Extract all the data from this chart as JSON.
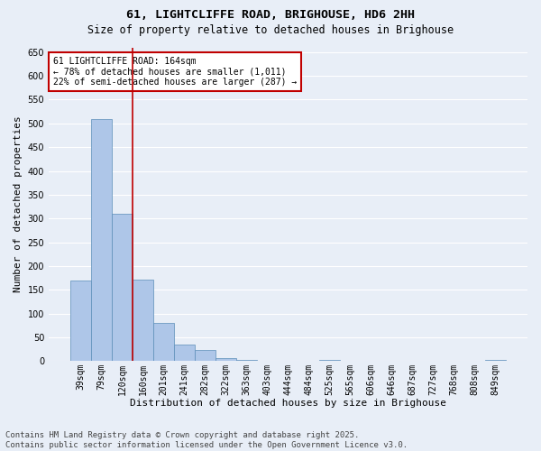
{
  "title": "61, LIGHTCLIFFE ROAD, BRIGHOUSE, HD6 2HH",
  "subtitle": "Size of property relative to detached houses in Brighouse",
  "xlabel": "Distribution of detached houses by size in Brighouse",
  "ylabel": "Number of detached properties",
  "categories": [
    "39sqm",
    "79sqm",
    "120sqm",
    "160sqm",
    "201sqm",
    "241sqm",
    "282sqm",
    "322sqm",
    "363sqm",
    "403sqm",
    "444sqm",
    "484sqm",
    "525sqm",
    "565sqm",
    "606sqm",
    "646sqm",
    "687sqm",
    "727sqm",
    "768sqm",
    "808sqm",
    "849sqm"
  ],
  "values": [
    170,
    510,
    310,
    172,
    80,
    35,
    24,
    6,
    2,
    0,
    0,
    0,
    3,
    0,
    0,
    0,
    0,
    0,
    0,
    0,
    2
  ],
  "bar_color": "#aec6e8",
  "bar_edge_color": "#5b8db8",
  "vline_x_index": 3,
  "vline_color": "#c00000",
  "annotation_line1": "61 LIGHTCLIFFE ROAD: 164sqm",
  "annotation_line2": "← 78% of detached houses are smaller (1,011)",
  "annotation_line3": "22% of semi-detached houses are larger (287) →",
  "annotation_box_facecolor": "#ffffff",
  "annotation_box_edgecolor": "#c00000",
  "ylim": [
    0,
    660
  ],
  "yticks": [
    0,
    50,
    100,
    150,
    200,
    250,
    300,
    350,
    400,
    450,
    500,
    550,
    600,
    650
  ],
  "background_color": "#e8eef7",
  "grid_color": "#ffffff",
  "footer_line1": "Contains HM Land Registry data © Crown copyright and database right 2025.",
  "footer_line2": "Contains public sector information licensed under the Open Government Licence v3.0.",
  "title_fontsize": 9.5,
  "subtitle_fontsize": 8.5,
  "axis_label_fontsize": 8,
  "tick_fontsize": 7,
  "annotation_fontsize": 7,
  "footer_fontsize": 6.5
}
